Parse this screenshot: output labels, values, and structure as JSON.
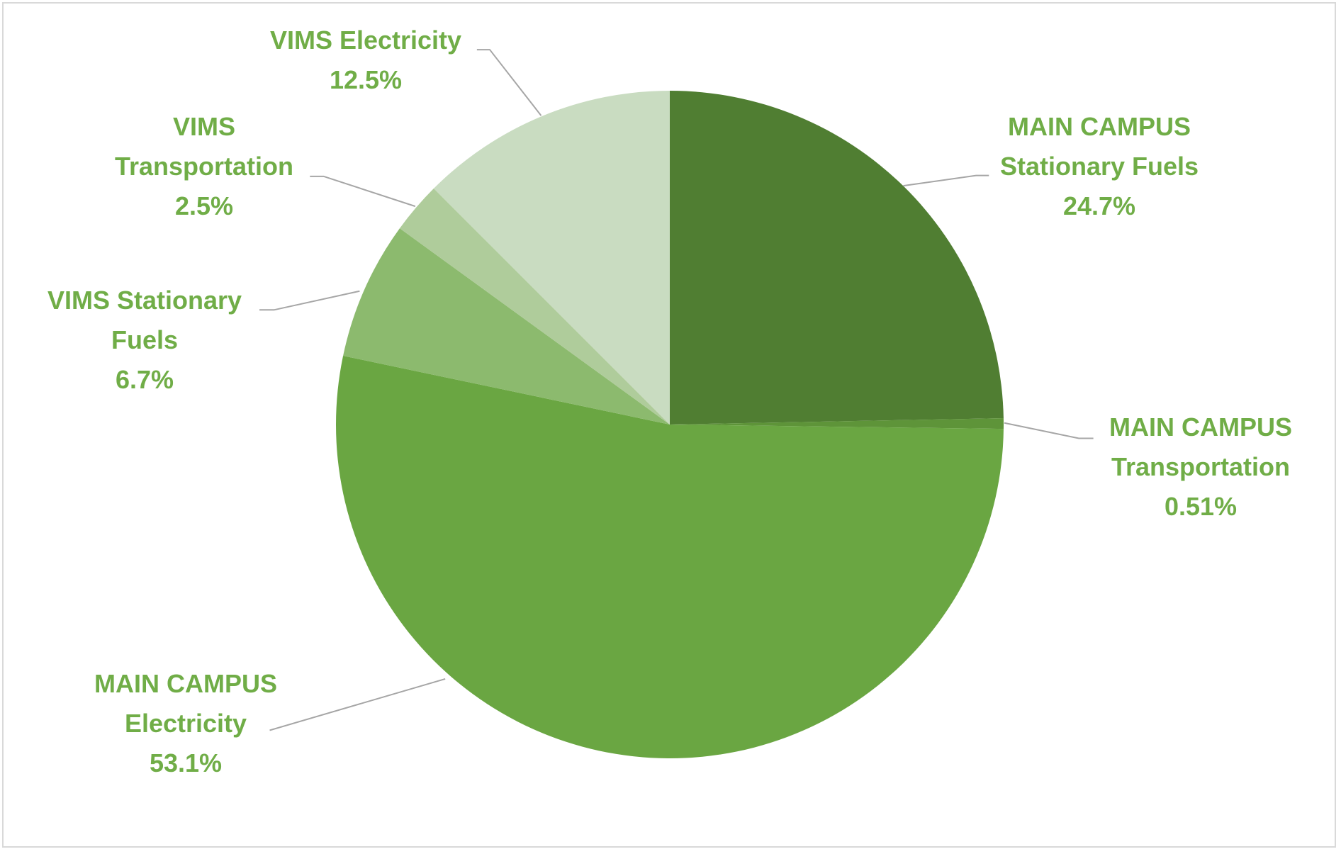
{
  "chart_data": {
    "type": "pie",
    "categories": [
      "MAIN CAMPUS Stationary Fuels",
      "MAIN CAMPUS Transportation",
      "MAIN CAMPUS Electricity",
      "VIMS Stationary Fuels",
      "VIMS Transportation",
      "VIMS Electricity"
    ],
    "values": [
      24.7,
      0.51,
      53.1,
      6.7,
      2.5,
      12.5
    ],
    "value_labels": [
      "24.7%",
      "0.51%",
      "53.1%",
      "6.7%",
      "2.5%",
      "12.5%"
    ],
    "colors": [
      "#507e32",
      "#5e9439",
      "#6aa642",
      "#8cba6e",
      "#afcc9b",
      "#c9dcc1"
    ],
    "label_color": "#70ad47"
  }
}
